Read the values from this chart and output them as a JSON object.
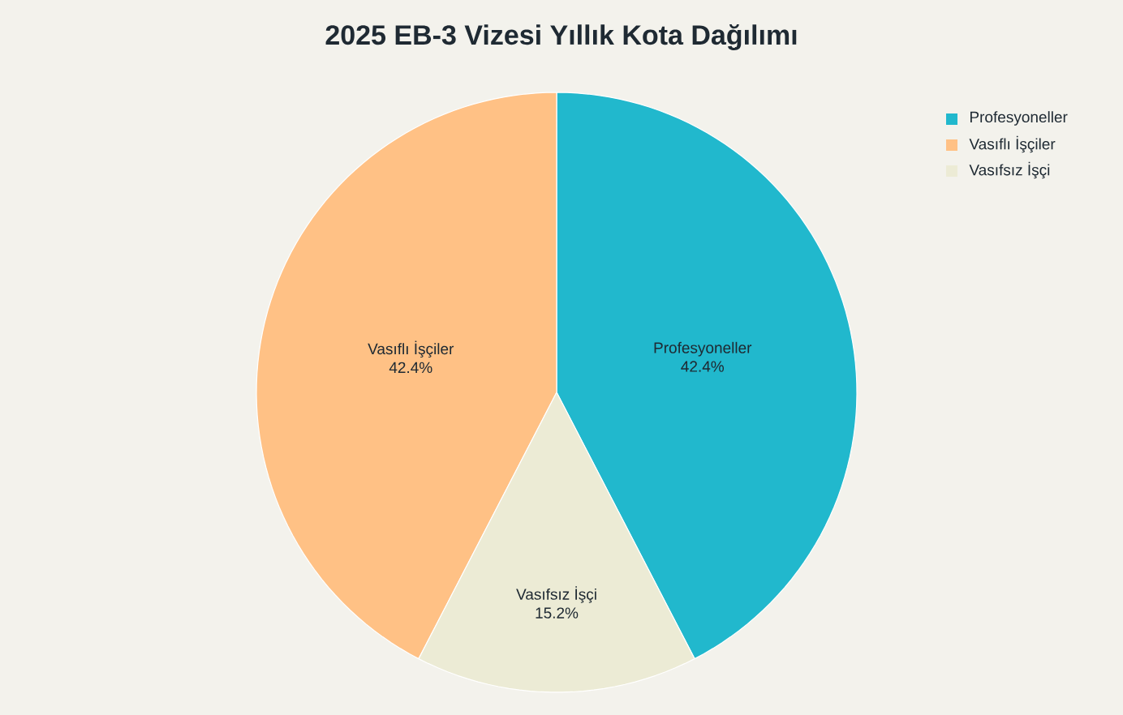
{
  "chart_data": {
    "type": "pie",
    "title": "2025 EB-3 Vizesi Yıllık Kota Dağılımı",
    "categories": [
      "Profesyoneller",
      "Vasıflı İşçiler",
      "Vasıfsız İşçi"
    ],
    "values": [
      42.4,
      42.4,
      15.2
    ],
    "colors": [
      "#21b8cd",
      "#ffc185",
      "#ecebd5"
    ],
    "value_labels": [
      "42.4%",
      "42.4%",
      "15.2%"
    ],
    "legend": "top right"
  }
}
